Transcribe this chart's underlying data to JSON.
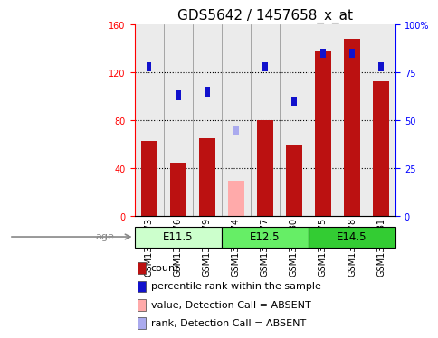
{
  "title": "GDS5642 / 1457658_x_at",
  "samples": [
    "GSM1310173",
    "GSM1310176",
    "GSM1310179",
    "GSM1310174",
    "GSM1310177",
    "GSM1310180",
    "GSM1310175",
    "GSM1310178",
    "GSM1310181"
  ],
  "red_values": [
    63,
    45,
    65,
    30,
    80,
    60,
    138,
    148,
    113
  ],
  "blue_values": [
    78,
    63,
    65,
    45,
    78,
    60,
    85,
    85,
    78
  ],
  "absent_red": [
    false,
    false,
    false,
    true,
    false,
    false,
    false,
    false,
    false
  ],
  "absent_blue": [
    false,
    false,
    false,
    true,
    false,
    false,
    false,
    false,
    false
  ],
  "age_groups": [
    {
      "label": "E11.5",
      "start": 0,
      "end": 3
    },
    {
      "label": "E12.5",
      "start": 3,
      "end": 6
    },
    {
      "label": "E14.5",
      "start": 6,
      "end": 9
    }
  ],
  "group_colors": [
    "#CCFFCC",
    "#66EE66",
    "#33CC33"
  ],
  "ylim_left": [
    0,
    160
  ],
  "ylim_right": [
    0,
    100
  ],
  "yticks_left": [
    0,
    40,
    80,
    120,
    160
  ],
  "yticks_right": [
    0,
    25,
    50,
    75,
    100
  ],
  "ytick_labels_right": [
    "0",
    "25",
    "50",
    "75",
    "100%"
  ],
  "red_color": "#BB1111",
  "blue_color": "#1111CC",
  "absent_red_color": "#FFAAAA",
  "absent_blue_color": "#AAAAEE",
  "title_fontsize": 11,
  "tick_fontsize": 7,
  "legend_fontsize": 8
}
